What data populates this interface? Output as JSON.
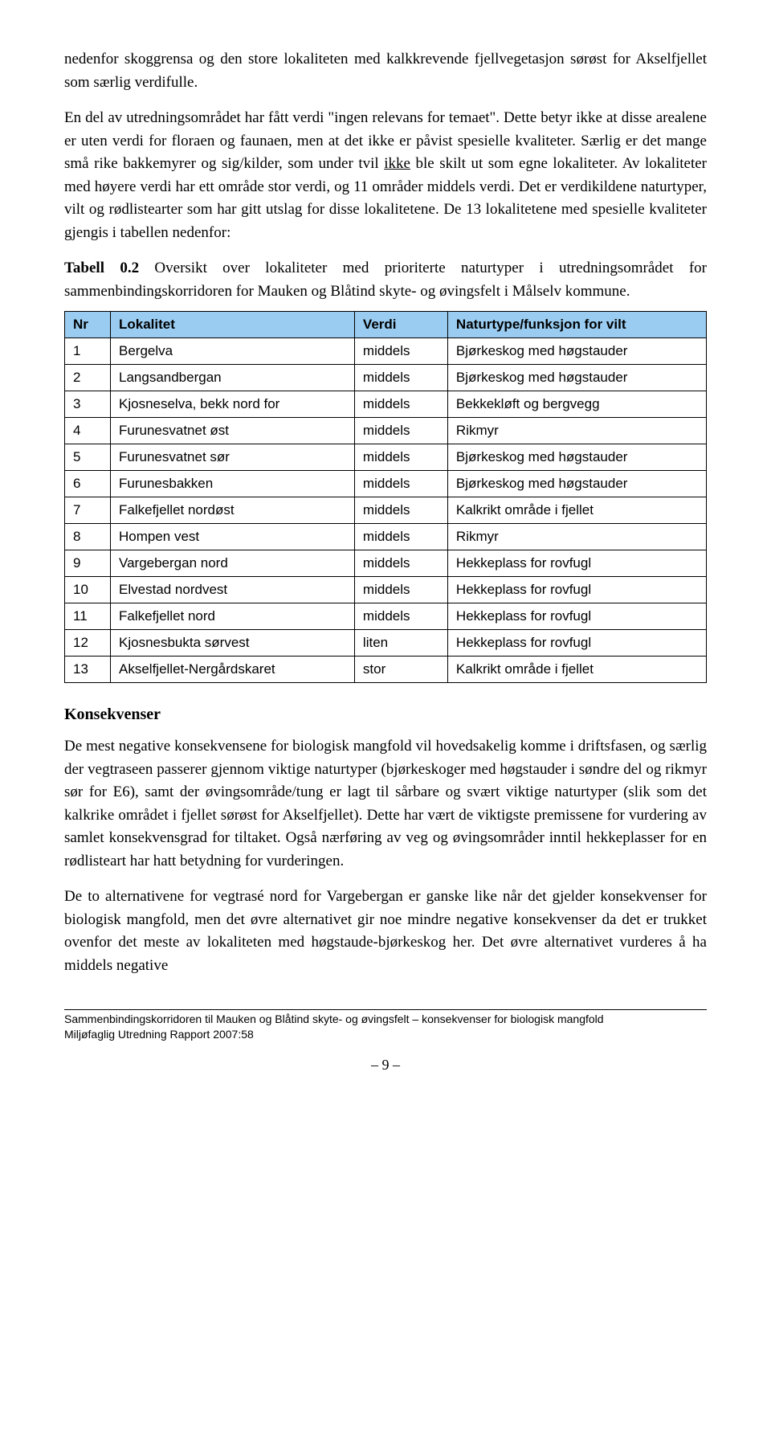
{
  "paragraphs": {
    "p1_a": "nedenfor skoggrensa og den store lokaliteten med kalkkrevende fjellvegetasjon sørøst for Akselfjellet som særlig verdifulle.",
    "p2_a": "En del av utredningsområdet har fått verdi \"ingen relevans for temaet\". Dette betyr ikke at disse arealene er uten verdi for floraen og faunaen, men at det ikke er påvist spesielle kvaliteter. Særlig er det mange små rike bakkemyrer og sig/kilder, som under tvil ",
    "p2_u": "ikke",
    "p2_b": " ble skilt ut som egne lokaliteter. Av lokaliteter med høyere verdi har ett område stor verdi, og 11 områder middels verdi. Det er verdikildene naturtyper, vilt og rødlistearter som har gitt utslag for disse lokalitetene. De 13 lokalitetene med spesielle kvaliteter gjengis i tabellen nedenfor:",
    "p3_b": "Tabell 0.2",
    "p3_a": " Oversikt over lokaliteter med prioriterte naturtyper i utredningsområdet for sammenbindingskorridoren for Mauken og Blåtind skyte- og øvingsfelt i Målselv kommune.",
    "kons_a": "De mest negative konsekvensene for biologisk mangfold vil hovedsakelig komme i driftsfasen, og særlig der vegtraseen passerer gjennom viktige naturtyper (bjørkeskoger med høgstauder i søndre del og rikmyr sør for E6), samt der øvingsområde/tung er lagt til sårbare og svært viktige naturtyper (slik som det kalkrike området i fjellet sørøst for Akselfjellet). Dette har vært de viktigste premissene for vurdering av samlet konsekvensgrad for tiltaket. Også nærføring av veg og øvingsområder inntil hekkeplasser for en rødlisteart har hatt betydning for vurderingen.",
    "kons_b": "De to alternativene for vegtrasé nord for Vargebergan er ganske like når det gjelder konsekvenser for biologisk mangfold, men det øvre alternativet gir noe mindre negative konsekvenser da det er trukket ovenfor det meste av lokaliteten med høgstaude-bjørkeskog her. Det øvre alternativet vurderes å ha middels negative"
  },
  "section_heading": "Konsekvenser",
  "table": {
    "headers": {
      "nr": "Nr",
      "lokalitet": "Lokalitet",
      "verdi": "Verdi",
      "natur": "Naturtype/funksjon for vilt"
    },
    "rows": [
      {
        "nr": "1",
        "lokalitet": "Bergelva",
        "verdi": "middels",
        "natur": "Bjørkeskog med høgstauder"
      },
      {
        "nr": "2",
        "lokalitet": "Langsandbergan",
        "verdi": "middels",
        "natur": "Bjørkeskog med høgstauder"
      },
      {
        "nr": "3",
        "lokalitet": "Kjosneselva, bekk nord for",
        "verdi": "middels",
        "natur": "Bekkekløft og bergvegg"
      },
      {
        "nr": "4",
        "lokalitet": "Furunesvatnet øst",
        "verdi": "middels",
        "natur": "Rikmyr"
      },
      {
        "nr": "5",
        "lokalitet": "Furunesvatnet sør",
        "verdi": "middels",
        "natur": "Bjørkeskog med høgstauder"
      },
      {
        "nr": "6",
        "lokalitet": "Furunesbakken",
        "verdi": "middels",
        "natur": "Bjørkeskog med høgstauder"
      },
      {
        "nr": "7",
        "lokalitet": "Falkefjellet nordøst",
        "verdi": "middels",
        "natur": "Kalkrikt område i fjellet"
      },
      {
        "nr": "8",
        "lokalitet": "Hompen vest",
        "verdi": "middels",
        "natur": "Rikmyr"
      },
      {
        "nr": "9",
        "lokalitet": "Vargebergan nord",
        "verdi": "middels",
        "natur": "Hekkeplass for rovfugl"
      },
      {
        "nr": "10",
        "lokalitet": "Elvestad nordvest",
        "verdi": "middels",
        "natur": "Hekkeplass for rovfugl"
      },
      {
        "nr": "11",
        "lokalitet": "Falkefjellet nord",
        "verdi": "middels",
        "natur": "Hekkeplass for rovfugl"
      },
      {
        "nr": "12",
        "lokalitet": "Kjosnesbukta sørvest",
        "verdi": "liten",
        "natur": "Hekkeplass for rovfugl"
      },
      {
        "nr": "13",
        "lokalitet": "Akselfjellet-Nergårdskaret",
        "verdi": "stor",
        "natur": "Kalkrikt område i fjellet"
      }
    ]
  },
  "footer": {
    "line1": "Sammenbindingskorridoren til Mauken og Blåtind skyte- og øvingsfelt – konsekvenser for biologisk mangfold",
    "line2": "Miljøfaglig Utredning Rapport 2007:58",
    "page": "–  9  –"
  },
  "styling": {
    "header_bg": "#99ccf0",
    "border_color": "#000000",
    "body_font": "Times New Roman",
    "table_font": "Arial",
    "body_fontsize": 19,
    "table_fontsize": 17
  }
}
